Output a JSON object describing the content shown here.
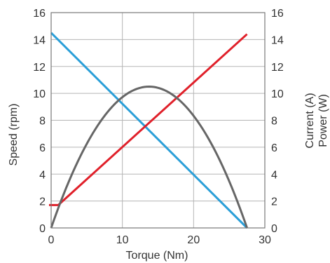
{
  "chart_data": {
    "type": "line",
    "xlabel": "Torque (Nm)",
    "ylabel": "Speed (rpm)",
    "y2label_lines": [
      "Current (A)",
      "Power (W)"
    ],
    "xlim": [
      0,
      30
    ],
    "ylim": [
      0,
      16
    ],
    "y2lim": [
      0,
      16
    ],
    "x_ticks": [
      0,
      10,
      20,
      30
    ],
    "y_ticks": [
      0,
      2,
      4,
      6,
      8,
      10,
      12,
      14,
      16
    ],
    "grid": true,
    "colors": {
      "speed": "#2b9fd8",
      "current": "#e0202a",
      "power": "#666666",
      "grid": "#b5b5b5",
      "frame": "#777777"
    },
    "series": [
      {
        "key": "speed",
        "axis": "left",
        "shape": "linear",
        "x": [
          0,
          27.5
        ],
        "y": [
          14.5,
          0
        ]
      },
      {
        "key": "current",
        "axis": "right",
        "shape": "linear",
        "x": [
          -0.3,
          1,
          27.5
        ],
        "y": [
          1.7,
          1.7,
          14.4
        ]
      },
      {
        "key": "power",
        "axis": "right",
        "shape": "parabola",
        "x": [
          0,
          13.75,
          27.5
        ],
        "y": [
          0,
          10.5,
          0
        ]
      }
    ]
  }
}
